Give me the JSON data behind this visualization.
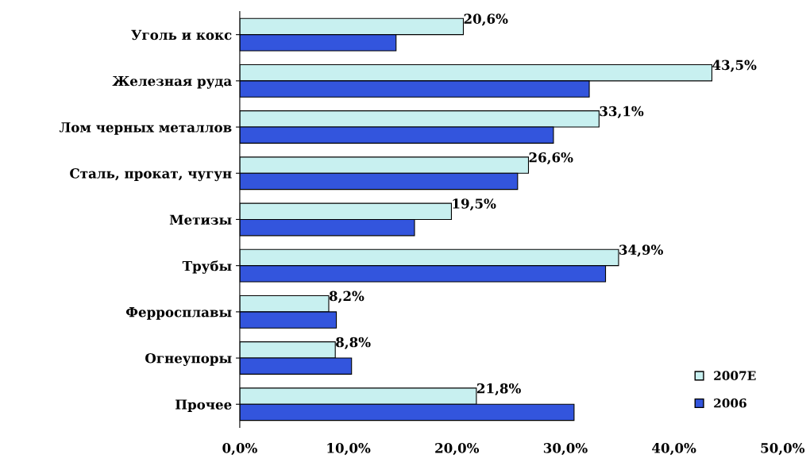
{
  "chart_data": {
    "type": "bar",
    "orientation": "horizontal",
    "categories": [
      "Уголь и кокс",
      "Железная руда",
      "Лом черных металлов",
      "Сталь, прокат, чугун",
      "Метизы",
      "Трубы",
      "Ферросплавы",
      "Огнеупоры",
      "Прочее"
    ],
    "series": [
      {
        "name": "2007E",
        "color": "#c8f0f0",
        "values": [
          20.6,
          43.5,
          33.1,
          26.6,
          19.5,
          34.9,
          8.2,
          8.8,
          21.8
        ],
        "value_labels": [
          "20,6%",
          "43,5%",
          "33,1%",
          "26,6%",
          "19,5%",
          "34,9%",
          "8,2%",
          "8,8%",
          "21,8%"
        ]
      },
      {
        "name": "2006",
        "color": "#3355dd",
        "values": [
          14.4,
          32.2,
          28.9,
          25.6,
          16.1,
          33.7,
          8.9,
          10.3,
          30.8
        ]
      }
    ],
    "xlim": [
      0,
      50
    ],
    "xticks": [
      {
        "value": 0,
        "label": "0,0%"
      },
      {
        "value": 10,
        "label": "10,0%"
      },
      {
        "value": 20,
        "label": "20,0%"
      },
      {
        "value": 30,
        "label": "30,0%"
      },
      {
        "value": 40,
        "label": "40,0%"
      },
      {
        "value": 50,
        "label": "50,0%"
      }
    ],
    "grid": false,
    "legend": "bottom right"
  }
}
